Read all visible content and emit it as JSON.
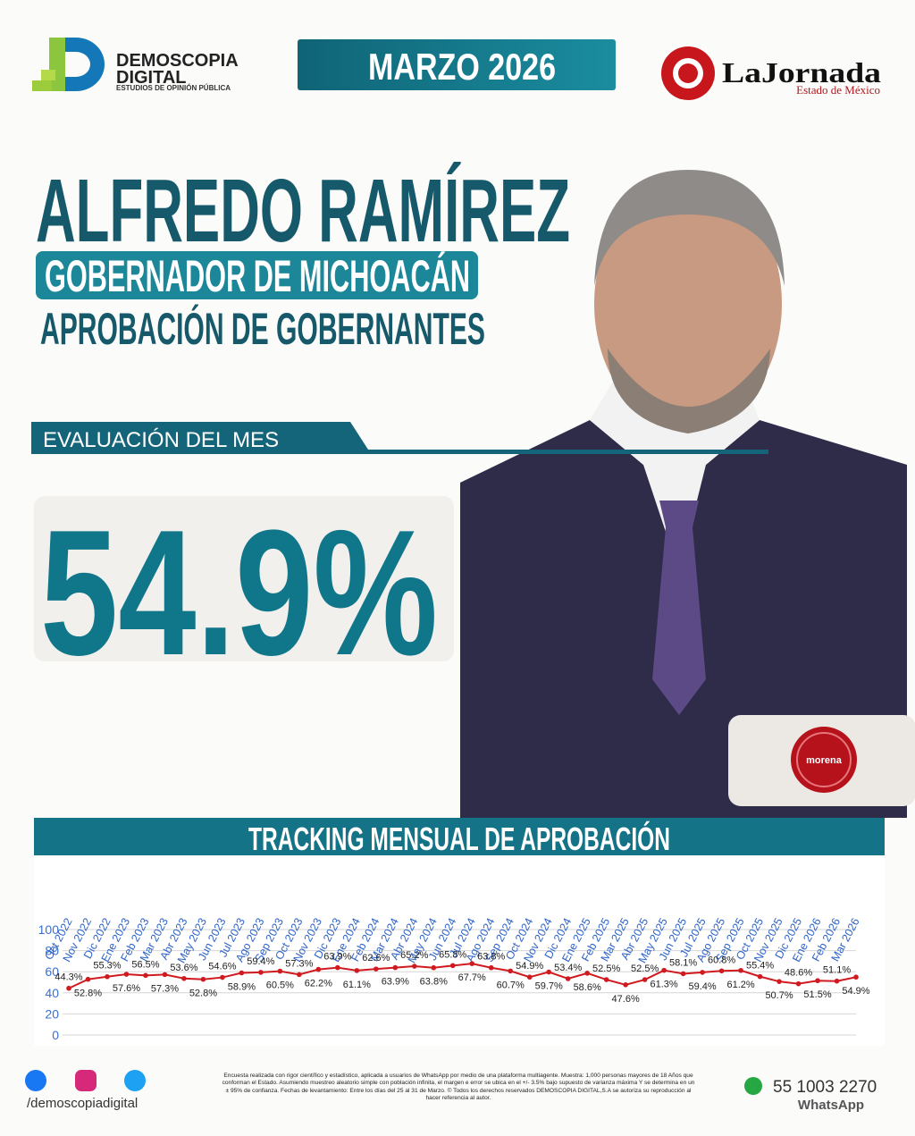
{
  "header": {
    "logo": {
      "line1": "DEMOSCOPIA",
      "line2": "DIGITAL",
      "tagline": "ESTUDIOS DE OPINIÓN PÚBLICA"
    },
    "month": "MARZO 2026",
    "partner": {
      "name": "LaJornada",
      "edition": "Estado de México"
    }
  },
  "hero": {
    "name": "ALFREDO RAMÍREZ",
    "position": "GOBERNADOR DE MICHOACÁN",
    "study": "APROBACIÓN DE GOBERNANTES",
    "evaluation_label": "EVALUACIÓN DEL MES",
    "evaluation_value": "54.9%",
    "party": "morena"
  },
  "chart_data": {
    "type": "line",
    "title": "TRACKING MENSUAL DE APROBACIÓN",
    "categories": [
      "Oct 2022",
      "Nov 2022",
      "Dic 2022",
      "Ene 2023",
      "Feb 2023",
      "Mar 2023",
      "Abr 2023",
      "May 2023",
      "Jun 2023",
      "Jul 2023",
      "Ago 2023",
      "Sep 2023",
      "Oct 2023",
      "Nov 2023",
      "Dic 2023",
      "Ene 2024",
      "Feb 2024",
      "Mar 2024",
      "Abr 2024",
      "May 2024",
      "Jun 2024",
      "Jul 2024",
      "Ago 2024",
      "Sep 2024",
      "Oct 2024",
      "Nov 2024",
      "Dic 2024",
      "Ene 2025",
      "Feb 2025",
      "Mar 2025",
      "Abr 2025",
      "May 2025",
      "Jun 2025",
      "Jul 2025",
      "Ago 2025",
      "Sep 2025",
      "Oct 2025",
      "Nov 2025",
      "Dic 2025",
      "Ene 2026",
      "Feb 2026",
      "Mar 2026"
    ],
    "values": [
      44.3,
      52.8,
      55.3,
      57.6,
      56.5,
      57.3,
      53.6,
      52.8,
      54.6,
      58.9,
      59.4,
      60.5,
      57.3,
      62.2,
      63.9,
      61.1,
      62.6,
      63.9,
      65.2,
      63.8,
      65.8,
      67.7,
      63.8,
      60.7,
      54.9,
      59.7,
      53.4,
      58.6,
      52.5,
      47.6,
      52.5,
      61.3,
      58.1,
      59.4,
      60.8,
      61.2,
      55.4,
      50.7,
      48.6,
      51.5,
      51.1,
      54.9
    ],
    "value_labels": [
      "44.3%",
      "52.8%",
      "55.3%",
      "57.6%",
      "56.5%",
      "57.3%",
      "53.6%",
      "52.8%",
      "54.6%",
      "58.9%",
      "59.4%",
      "60.5%",
      "57.3%",
      "62.2%",
      "63.9%",
      "61.1%",
      "62.6%",
      "63.9%",
      "65.2%",
      "63.8%",
      "65.8%",
      "67.7%",
      "63.8%",
      "60.7%",
      "54.9%",
      "59.7%",
      "53.4%",
      "58.6%",
      "52.5%",
      "47.6%",
      "52.5%",
      "61.3%",
      "58.1%",
      "59.4%",
      "60.8%",
      "61.2%",
      "55.4%",
      "50.7%",
      "48.6%",
      "51.5%",
      "51.1%",
      "54.9%"
    ],
    "color": "#d11a1f",
    "ylim": [
      0,
      100
    ],
    "yticks": [
      0,
      20,
      40,
      60,
      80,
      100
    ],
    "grid": true
  },
  "footer": {
    "social": "/demoscopiadigital",
    "note": "Encuesta realizada con rigor científico y estadístico, aplicada a usuarios de WhatsApp por medio de una plataforma multiagente. Muestra: 1,000 personas mayores de 18 Años que conforman el Estado. Asumiendo muestreo aleatorio simple con población infinita, el margen e error se ubica en el +/- 3.5% bajo supuesto de varianza máxima Y se determina en un ± 95% de confianza. Fechas de levantamiento: Entre los días del 25 al 31 de Marzo. © Todos los derechos reservados DEMOSCOPIA DIGITAL,S.A se autoriza su reproducción al hacer referencia al autor.",
    "phone": "55 1003 2270",
    "channel": "WhatsApp"
  }
}
